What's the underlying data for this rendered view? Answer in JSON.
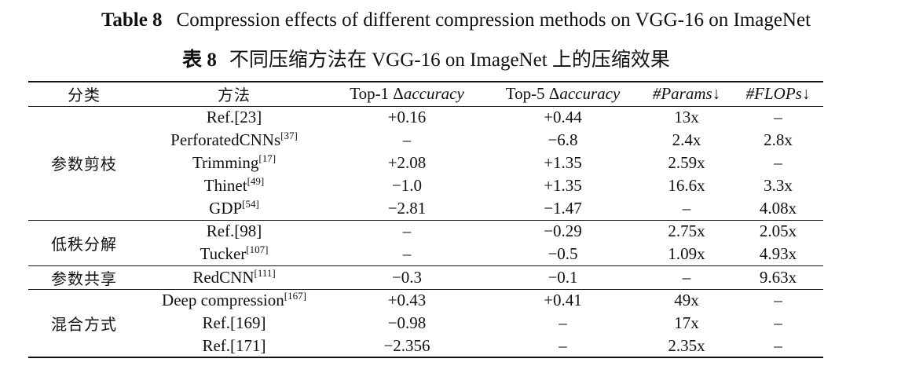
{
  "caption": {
    "en_label": "Table 8",
    "en_text": "Compression effects of different compression methods on VGG-16 on ImageNet",
    "zh_label": "表 8",
    "zh_text": "不同压缩方法在 VGG-16 on ImageNet 上的压缩效果"
  },
  "headers": {
    "category": "分类",
    "method": "方法",
    "top1_prefix": "Top-1 Δ",
    "top1_italic": "accuracy",
    "top5_prefix": "Top-5 Δ",
    "top5_italic": "accuracy",
    "params": "#Params↓",
    "flops": "#FLOPs↓"
  },
  "groups": [
    {
      "category": "参数剪枝",
      "rows": [
        {
          "method": "Ref.[23]",
          "ref": "",
          "top1": "+0.16",
          "top5": "+0.44",
          "params": "13x",
          "flops": "–"
        },
        {
          "method": "PerforatedCNNs",
          "ref": "[37]",
          "top1": "–",
          "top5": "−6.8",
          "params": "2.4x",
          "flops": "2.8x"
        },
        {
          "method": "Trimming",
          "ref": "[17]",
          "top1": "+2.08",
          "top5": "+1.35",
          "params": "2.59x",
          "flops": "–"
        },
        {
          "method": "Thinet",
          "ref": "[49]",
          "top1": "−1.0",
          "top5": "+1.35",
          "params": "16.6x",
          "flops": "3.3x"
        },
        {
          "method": "GDP",
          "ref": "[54]",
          "top1": "−2.81",
          "top5": "−1.47",
          "params": "–",
          "flops": "4.08x"
        }
      ]
    },
    {
      "category": "低秩分解",
      "rows": [
        {
          "method": "Ref.[98]",
          "ref": "",
          "top1": "–",
          "top5": "−0.29",
          "params": "2.75x",
          "flops": "2.05x"
        },
        {
          "method": "Tucker",
          "ref": "[107]",
          "top1": "–",
          "top5": "−0.5",
          "params": "1.09x",
          "flops": "4.93x"
        }
      ]
    },
    {
      "category": "参数共享",
      "rows": [
        {
          "method": "RedCNN",
          "ref": "[111]",
          "top1": "−0.3",
          "top5": "−0.1",
          "params": "–",
          "flops": "9.63x"
        }
      ]
    },
    {
      "category": "混合方式",
      "rows": [
        {
          "method": "Deep compression",
          "ref": "[167]",
          "top1": "+0.43",
          "top5": "+0.41",
          "params": "49x",
          "flops": "–"
        },
        {
          "method": "Ref.[169]",
          "ref": "",
          "top1": "−0.98",
          "top5": "–",
          "params": "17x",
          "flops": "–"
        },
        {
          "method": "Ref.[171]",
          "ref": "",
          "top1": "−2.356",
          "top5": "–",
          "params": "2.35x",
          "flops": "–"
        }
      ]
    }
  ]
}
